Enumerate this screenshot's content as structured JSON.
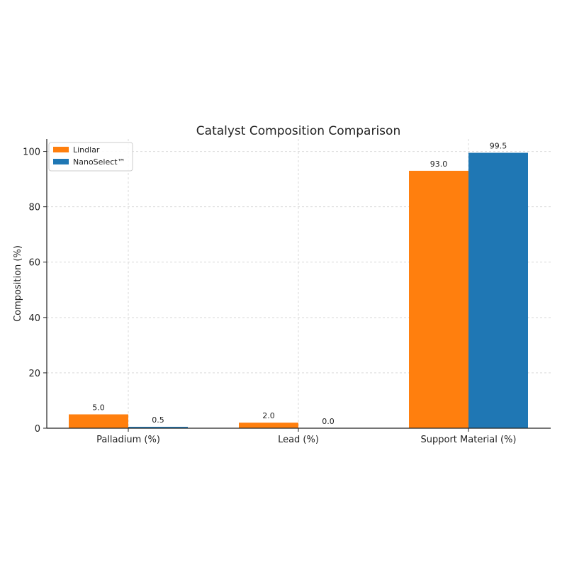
{
  "chart_data": {
    "type": "bar",
    "title": "Catalyst Composition Comparison",
    "xlabel": "",
    "ylabel": "Composition (%)",
    "categories": [
      "Palladium (%)",
      "Lead (%)",
      "Support Material (%)"
    ],
    "series": [
      {
        "name": "Lindlar",
        "values": [
          5.0,
          2.0,
          93.0
        ],
        "labels": [
          "5.0",
          "2.0",
          "93.0"
        ],
        "color": "#ff7f0e"
      },
      {
        "name": "NanoSelect™",
        "values": [
          0.5,
          0.0,
          99.5
        ],
        "labels": [
          "0.5",
          "0.0",
          "99.5"
        ],
        "color": "#1f77b4"
      }
    ],
    "ylim": [
      0,
      104.5
    ],
    "yticks": [
      0,
      20,
      40,
      60,
      80,
      100
    ],
    "grid": true,
    "legend_position": "top-left"
  }
}
